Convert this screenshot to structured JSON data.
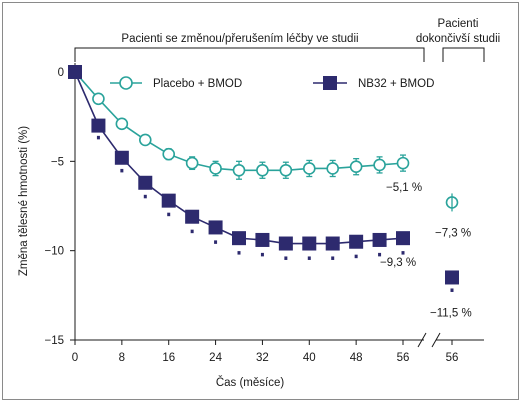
{
  "chart_data": {
    "type": "line",
    "ylabel": "Změna tělesné hmotnosti (%)",
    "xlabel": "Čas (měsíce)",
    "x_ticks": [
      "0",
      "8",
      "16",
      "24",
      "32",
      "40",
      "48",
      "56"
    ],
    "x_tick_end": "56",
    "y_ticks": [
      "0",
      "−5",
      "−10",
      "−15"
    ],
    "ylim": [
      -15,
      0
    ],
    "xlim": [
      0,
      56
    ],
    "bracket_left_label": "Pacienti se změnou/přerušením léčby ve studii",
    "bracket_right_label_line1": "Pacienti",
    "bracket_right_label_line2": "dokončivší studii",
    "series": [
      {
        "name": "Placebo + BMOD",
        "color": "#2aa39b",
        "marker": "circle",
        "x": [
          0,
          4,
          8,
          12,
          16,
          20,
          24,
          28,
          32,
          36,
          40,
          44,
          48,
          52,
          56
        ],
        "y": [
          0,
          -1.5,
          -2.9,
          -3.8,
          -4.6,
          -5.1,
          -5.4,
          -5.5,
          -5.5,
          -5.5,
          -5.4,
          -5.4,
          -5.3,
          -5.2,
          -5.1
        ],
        "err": [
          0,
          0.15,
          0.2,
          0.25,
          0.3,
          0.35,
          0.4,
          0.5,
          0.45,
          0.45,
          0.45,
          0.45,
          0.45,
          0.45,
          0.45
        ],
        "end_label": "−5,1 %",
        "completer_value": -7.3,
        "completer_label": "−7,3 %"
      },
      {
        "name": "NB32 + BMOD",
        "color": "#2d2a6e",
        "marker": "square",
        "x": [
          0,
          4,
          8,
          12,
          16,
          20,
          24,
          28,
          32,
          36,
          40,
          44,
          48,
          52,
          56
        ],
        "y": [
          0,
          -3.0,
          -4.8,
          -6.2,
          -7.2,
          -8.1,
          -8.7,
          -9.3,
          -9.4,
          -9.6,
          -9.6,
          -9.6,
          -9.5,
          -9.4,
          -9.3
        ],
        "err": [
          0,
          0.35,
          0.4,
          0.45,
          0.45,
          0.5,
          0.5,
          0.5,
          0.5,
          0.5,
          0.5,
          0.5,
          0.5,
          0.5,
          0.5
        ],
        "end_label": "−9,3 %",
        "completer_value": -11.5,
        "completer_label": "−11,5 %"
      }
    ]
  }
}
